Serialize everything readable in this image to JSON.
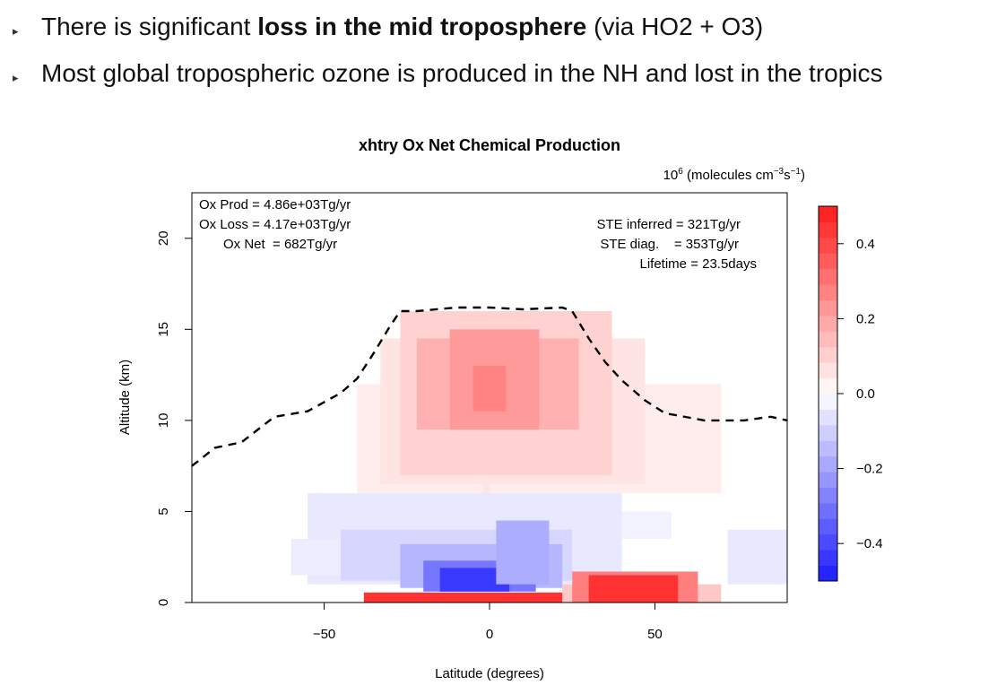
{
  "bullets": [
    {
      "pre": "There is significant ",
      "bold": "loss in the mid troposphere",
      "post": " (via HO2 + O3)"
    },
    {
      "pre": "Most global tropospheric ozone is produced in the NH and lost in the tropics",
      "bold": "",
      "post": ""
    }
  ],
  "chart_data": {
    "type": "heatmap",
    "title": "xhtry Ox Net Chemical Production",
    "units": {
      "base": "10",
      "exp": "6",
      "text": " (molecules cm",
      "exp2": "−3",
      "mid": "s",
      "exp3": "−1",
      "end": ")"
    },
    "xlabel": "Latitude (degrees)",
    "ylabel": "Altitude (km)",
    "xlim": [
      -90,
      90
    ],
    "ylim": [
      0,
      22.5
    ],
    "xticks": [
      -50,
      0,
      50
    ],
    "xtick_labels": [
      "−50",
      "0",
      "50"
    ],
    "yticks": [
      0,
      5,
      10,
      15,
      20
    ],
    "ytick_labels": [
      "0",
      "5",
      "10",
      "15",
      "20"
    ],
    "annotations_left": [
      "Ox Prod = 4.86e+03Tg/yr",
      "Ox Loss = 4.17e+03Tg/yr",
      "Ox Net  = 682Tg/yr"
    ],
    "annotations_right": [
      "STE inferred = 321Tg/yr",
      "STE diag.    = 353Tg/yr",
      "Lifetime = 23.5days"
    ],
    "colorbar": {
      "range": [
        -0.5,
        0.5
      ],
      "ticks": [
        0.4,
        0.2,
        0.0,
        -0.2,
        -0.4
      ],
      "tick_labels": [
        "0.4",
        "0.2",
        "0.0",
        "−0.2",
        "−0.4"
      ],
      "low_color": "#1a1aff",
      "mid_color": "#ffffff",
      "high_color": "#ff1a1a"
    },
    "regions": [
      {
        "lat": [
          -40,
          70
        ],
        "alt": [
          6,
          12
        ],
        "value": 0.04
      },
      {
        "lat": [
          -33,
          47
        ],
        "alt": [
          6.5,
          14.5
        ],
        "value": 0.06
      },
      {
        "lat": [
          -27,
          37
        ],
        "alt": [
          7,
          16
        ],
        "value": 0.1
      },
      {
        "lat": [
          -22,
          27
        ],
        "alt": [
          9.5,
          14.5
        ],
        "value": 0.17
      },
      {
        "lat": [
          -12,
          15
        ],
        "alt": [
          9.5,
          15
        ],
        "value": 0.22
      },
      {
        "lat": [
          -5,
          5
        ],
        "alt": [
          10.5,
          13
        ],
        "value": 0.27
      },
      {
        "lat": [
          -2,
          0
        ],
        "alt": [
          5.5,
          7
        ],
        "value": 0.06
      },
      {
        "lat": [
          -55,
          40
        ],
        "alt": [
          1,
          6
        ],
        "value": -0.05
      },
      {
        "lat": [
          -60,
          -45
        ],
        "alt": [
          1.5,
          3.5
        ],
        "value": -0.04
      },
      {
        "lat": [
          40,
          55
        ],
        "alt": [
          3.5,
          5
        ],
        "value": -0.03
      },
      {
        "lat": [
          72,
          90
        ],
        "alt": [
          1,
          4
        ],
        "value": -0.05
      },
      {
        "lat": [
          -45,
          25
        ],
        "alt": [
          1.2,
          4
        ],
        "value": -0.09
      },
      {
        "lat": [
          -27,
          22
        ],
        "alt": [
          0.8,
          3.2
        ],
        "value": -0.16
      },
      {
        "lat": [
          -20,
          14
        ],
        "alt": [
          0.6,
          2.3
        ],
        "value": -0.3
      },
      {
        "lat": [
          -15,
          6
        ],
        "alt": [
          0.6,
          1.9
        ],
        "value": -0.43
      },
      {
        "lat": [
          2,
          18
        ],
        "alt": [
          1,
          4.5
        ],
        "value": -0.18
      },
      {
        "lat": [
          -38,
          25
        ],
        "alt": [
          0,
          0.55
        ],
        "value": 0.45
      },
      {
        "lat": [
          22,
          70
        ],
        "alt": [
          0,
          1
        ],
        "value": 0.12
      },
      {
        "lat": [
          25,
          63
        ],
        "alt": [
          0,
          1.7
        ],
        "value": 0.28
      },
      {
        "lat": [
          30,
          57
        ],
        "alt": [
          0,
          1.5
        ],
        "value": 0.45
      }
    ],
    "tropopause": {
      "lat": [
        -90,
        -83,
        -75,
        -65,
        -55,
        -45,
        -40,
        -35,
        -30,
        -27,
        -22,
        -10,
        0,
        10,
        22,
        25,
        30,
        35,
        40,
        47,
        53,
        65,
        77,
        85,
        90
      ],
      "alt": [
        7.5,
        8.5,
        8.8,
        10.2,
        10.5,
        11.5,
        12.3,
        13.7,
        15.2,
        16.0,
        16.0,
        16.2,
        16.2,
        16.1,
        16.2,
        16.0,
        14.5,
        13.2,
        12.2,
        11.1,
        10.4,
        10.0,
        10.0,
        10.2,
        10.0
      ]
    }
  }
}
